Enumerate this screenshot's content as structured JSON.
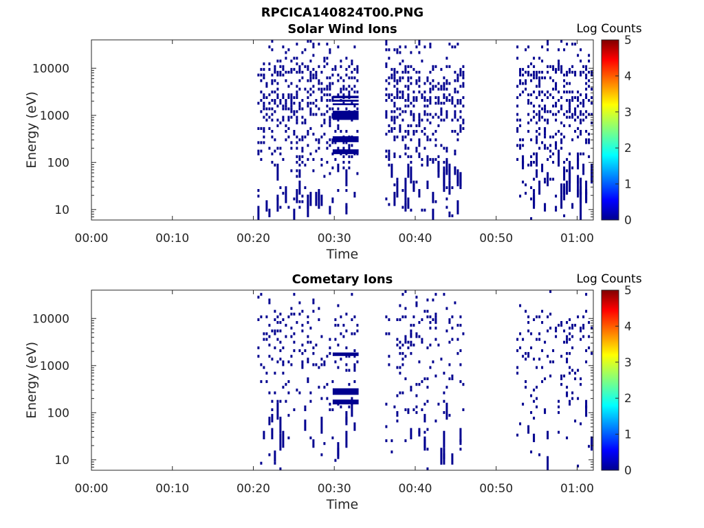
{
  "figure": {
    "title": "RPCICA140824T00.PNG"
  },
  "chart_data": [
    {
      "type": "heatmap",
      "title": "Solar Wind Ions",
      "xlabel": "Time",
      "ylabel": "Energy (eV)",
      "x_tick_labels": [
        "00:00",
        "00:10",
        "00:20",
        "00:30",
        "00:40",
        "00:50",
        "01:00"
      ],
      "x_ticks_min": [
        0,
        10,
        20,
        30,
        40,
        50,
        60
      ],
      "xlim_min": [
        0,
        62
      ],
      "y_tick_labels": [
        "10",
        "100",
        "1000",
        "10000"
      ],
      "y_ticks": [
        10,
        100,
        1000,
        10000
      ],
      "ylim": [
        6,
        40000
      ],
      "yscale": "log",
      "colorbar": {
        "label": "Log Counts",
        "ticks": [
          0,
          1,
          2,
          3,
          4,
          5
        ],
        "colormap": "jet"
      },
      "observed_color": "#00008f",
      "activity_intervals_min": [
        [
          20.5,
          33
        ],
        [
          36.3,
          46
        ],
        [
          52.5,
          62
        ]
      ],
      "persistent_bands": [
        {
          "t_min": [
            29.8,
            33
          ],
          "energy_eV": [
            2300,
            2600
          ]
        },
        {
          "t_min": [
            29.8,
            33
          ],
          "energy_eV": [
            1950,
            2150
          ]
        },
        {
          "t_min": [
            29.8,
            33
          ],
          "energy_eV": [
            1650,
            1800
          ]
        },
        {
          "t_min": [
            29.8,
            33
          ],
          "energy_eV": [
            800,
            1250
          ]
        },
        {
          "t_min": [
            29.8,
            33
          ],
          "energy_eV": [
            270,
            360
          ]
        },
        {
          "t_min": [
            29.8,
            33
          ],
          "energy_eV": [
            150,
            190
          ]
        }
      ]
    },
    {
      "type": "heatmap",
      "title": "Cometary Ions",
      "xlabel": "Time",
      "ylabel": "Energy (eV)",
      "x_tick_labels": [
        "00:00",
        "00:10",
        "00:20",
        "00:30",
        "00:40",
        "00:50",
        "01:00"
      ],
      "x_ticks_min": [
        0,
        10,
        20,
        30,
        40,
        50,
        60
      ],
      "xlim_min": [
        0,
        62
      ],
      "y_tick_labels": [
        "10",
        "100",
        "1000",
        "10000"
      ],
      "y_ticks": [
        10,
        100,
        1000,
        10000
      ],
      "ylim": [
        6,
        40000
      ],
      "yscale": "log",
      "colorbar": {
        "label": "Log Counts",
        "ticks": [
          0,
          1,
          2,
          3,
          4,
          5
        ],
        "colormap": "jet"
      },
      "observed_color": "#00008f",
      "activity_intervals_min": [
        [
          20.5,
          33
        ],
        [
          36.3,
          46
        ],
        [
          52.5,
          62
        ]
      ],
      "persistent_bands": [
        {
          "t_min": [
            29.8,
            33
          ],
          "energy_eV": [
            1600,
            1900
          ]
        },
        {
          "t_min": [
            29.8,
            33
          ],
          "energy_eV": [
            240,
            330
          ]
        },
        {
          "t_min": [
            29.8,
            33
          ],
          "energy_eV": [
            150,
            190
          ]
        }
      ]
    }
  ]
}
